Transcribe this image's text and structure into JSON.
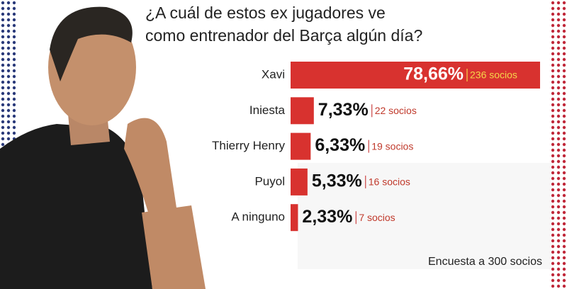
{
  "chart_data": {
    "type": "hbar",
    "title": [
      "¿A cuál de estos ex jugadores ve",
      "como entrenador del Barça algún día?"
    ],
    "categories": [
      "Xavi",
      "Iniesta",
      "Thierry Henry",
      "Puyol",
      "A ninguno"
    ],
    "values": [
      78.66,
      7.33,
      6.33,
      5.33,
      2.33
    ],
    "value_labels": [
      "78,66%",
      "7,33%",
      "6,33%",
      "5,33%",
      "2,33%"
    ],
    "socios_labels": [
      "236 socios",
      "22 socios",
      "19 socios",
      "16 socios",
      "7 socios"
    ],
    "color": "#d8322f",
    "note": "Encuesta a 300 socios"
  }
}
